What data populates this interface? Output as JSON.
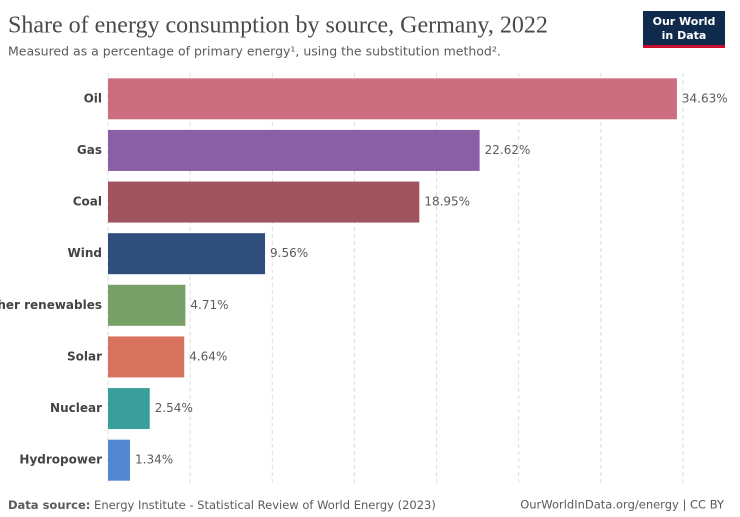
{
  "chart_data": {
    "type": "hbar",
    "title": "Share of energy consumption by source, Germany, 2022",
    "subtitle": "Measured as a percentage of primary energy¹, using the substitution method².",
    "categories": [
      "Oil",
      "Gas",
      "Coal",
      "Wind",
      "Other renewables",
      "Solar",
      "Nuclear",
      "Hydropower"
    ],
    "values": [
      34.63,
      22.62,
      18.95,
      9.56,
      4.71,
      4.64,
      2.54,
      1.34
    ],
    "value_labels": [
      "34.63%",
      "22.62%",
      "18.95%",
      "9.56%",
      "4.71%",
      "4.64%",
      "2.54%",
      "1.34%"
    ],
    "colors": [
      "#cc6e80",
      "#8b5fa6",
      "#a0545f",
      "#2f4e7b",
      "#76a065",
      "#d8735f",
      "#3a9e9a",
      "#5387cf"
    ],
    "xlim": [
      0,
      35
    ],
    "xticks": [
      0,
      5,
      10,
      15,
      20,
      25,
      30,
      35
    ],
    "grid": true,
    "source_label": "Data source:",
    "source": "Energy Institute - Statistical Review of World Energy (2023)",
    "credit": "OurWorldInData.org/energy | CC BY",
    "logo": [
      "Our World",
      "in Data"
    ]
  }
}
